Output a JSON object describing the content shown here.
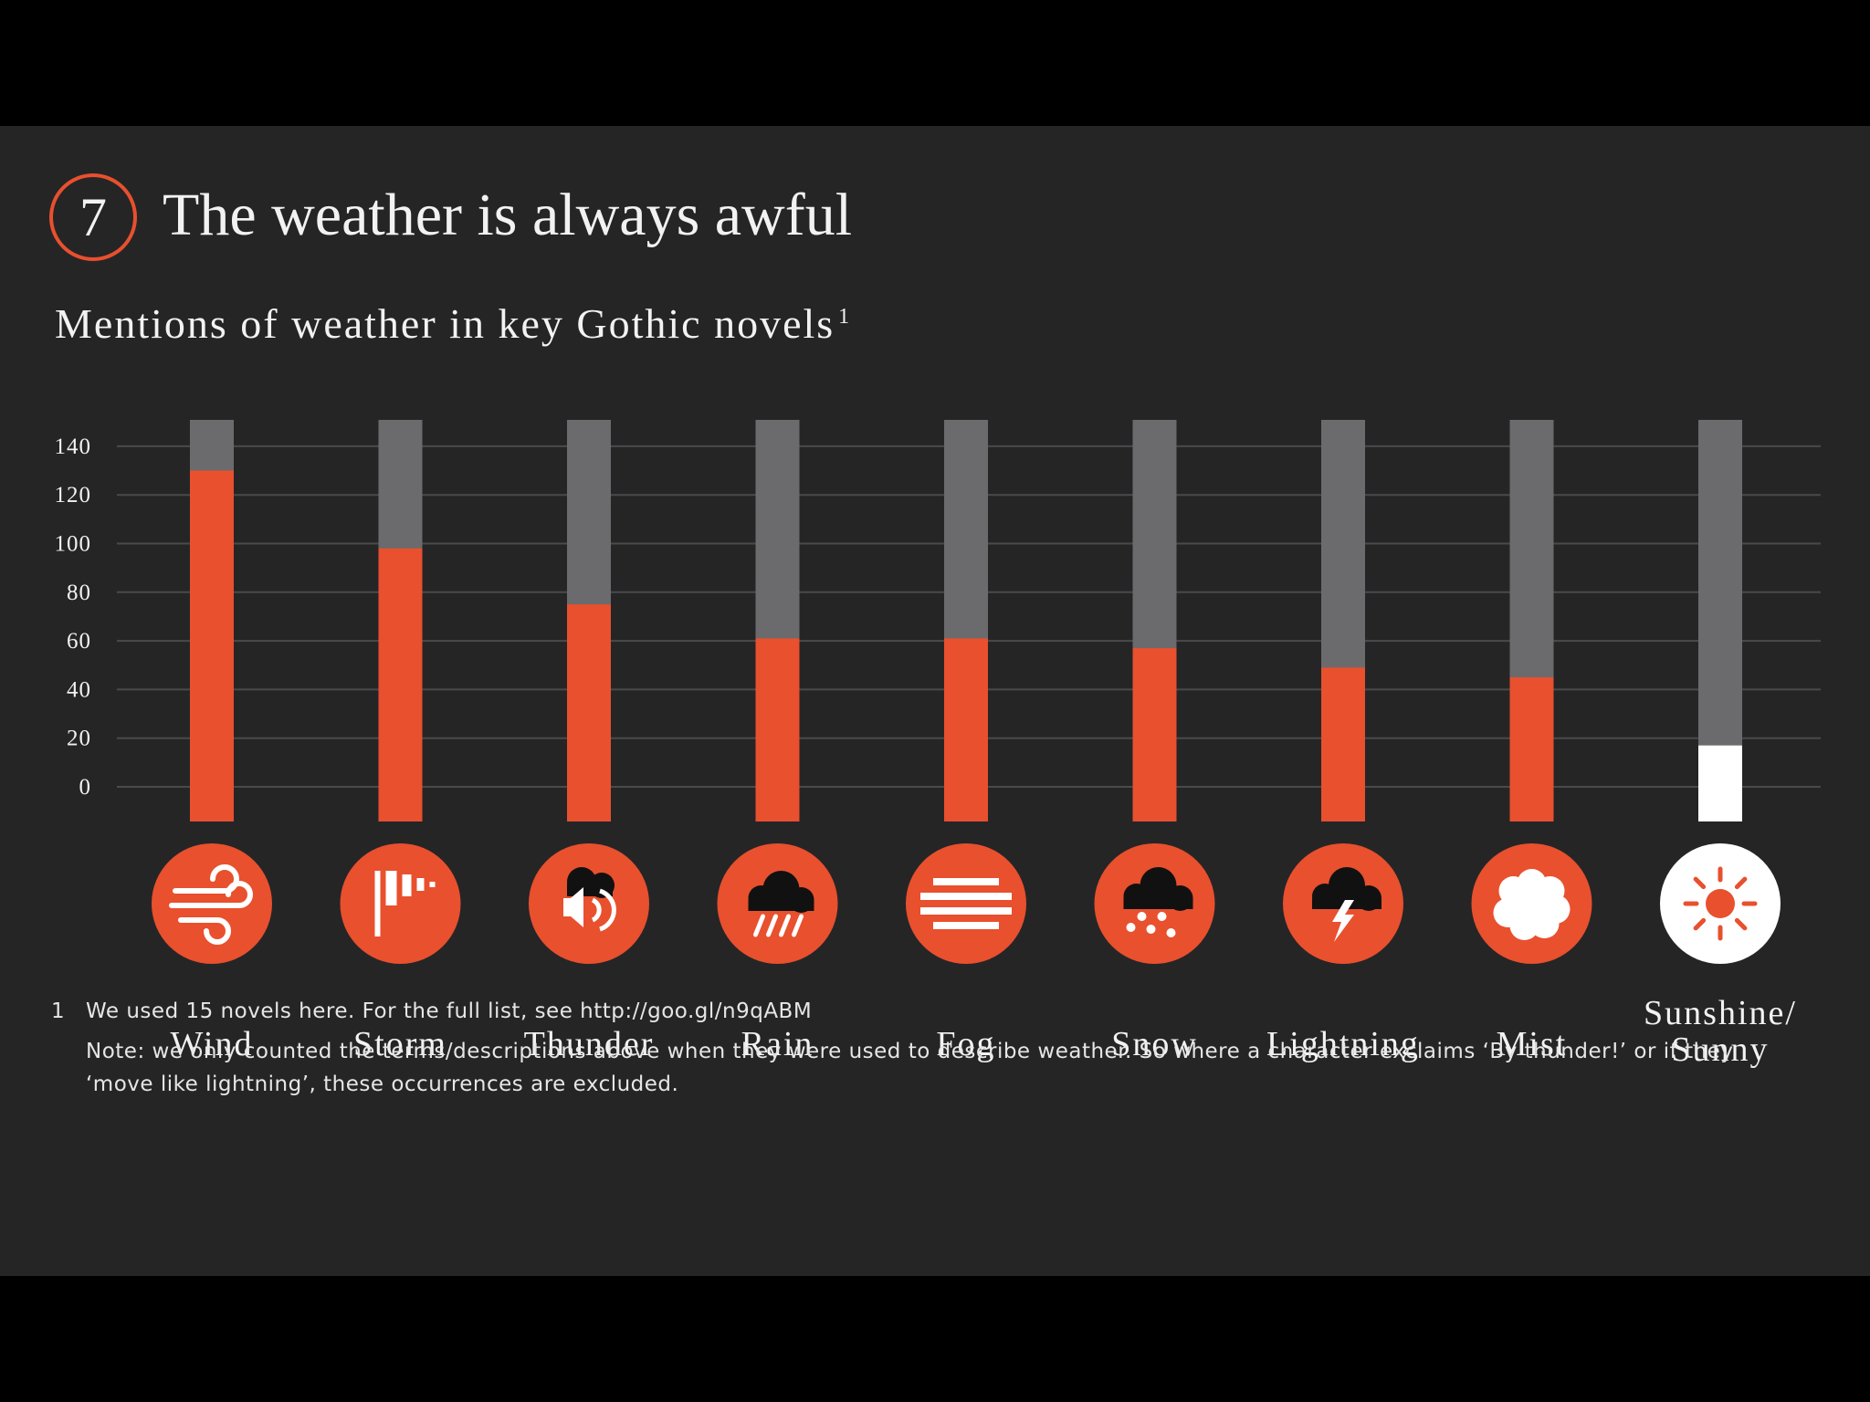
{
  "colors": {
    "background": "#252526",
    "accent": "#e8502e",
    "track": "#6b6b6d",
    "grid": "#4a4a4c",
    "highlight": "#ffffff",
    "text": "#f2f2f2"
  },
  "header": {
    "number": "7",
    "title": "The weather is always awful",
    "subtitle": "Mentions of weather in key Gothic novels",
    "subtitle_note_ref": "1"
  },
  "chart_data": {
    "type": "bar",
    "title": "Mentions of weather in key Gothic novels",
    "xlabel": "",
    "ylabel": "",
    "ylim": [
      0,
      140
    ],
    "y_ticks": [
      0,
      20,
      40,
      60,
      80,
      100,
      120,
      140
    ],
    "grid": true,
    "categories": [
      "Wind",
      "Storm",
      "Thunder",
      "Rain",
      "Fog",
      "Snow",
      "Lightning",
      "Mist",
      "Sunshine/ Sunny"
    ],
    "category_lines": [
      [
        "Wind"
      ],
      [
        "Storm"
      ],
      [
        "Thunder"
      ],
      [
        "Rain"
      ],
      [
        "Fog"
      ],
      [
        "Snow"
      ],
      [
        "Lightning"
      ],
      [
        "Mist"
      ],
      [
        "Sunshine/",
        "Sunny"
      ]
    ],
    "values": [
      130,
      98,
      75,
      61,
      61,
      57,
      49,
      45,
      17
    ],
    "icons": [
      "wind-icon",
      "storm-icon",
      "thunder-icon",
      "rain-icon",
      "fog-icon",
      "snow-icon",
      "lightning-icon",
      "mist-icon",
      "sun-icon"
    ]
  },
  "footnote": {
    "number": "1",
    "text": "We used 15 novels here. For the full list, see http://goo.gl/n9qABM",
    "note": "Note: we only counted the terms/descriptions above when they were used to describe weather. So where a character exclaims ‘By thunder!’ or if they ‘move like lightning’, these occurrences are excluded."
  }
}
